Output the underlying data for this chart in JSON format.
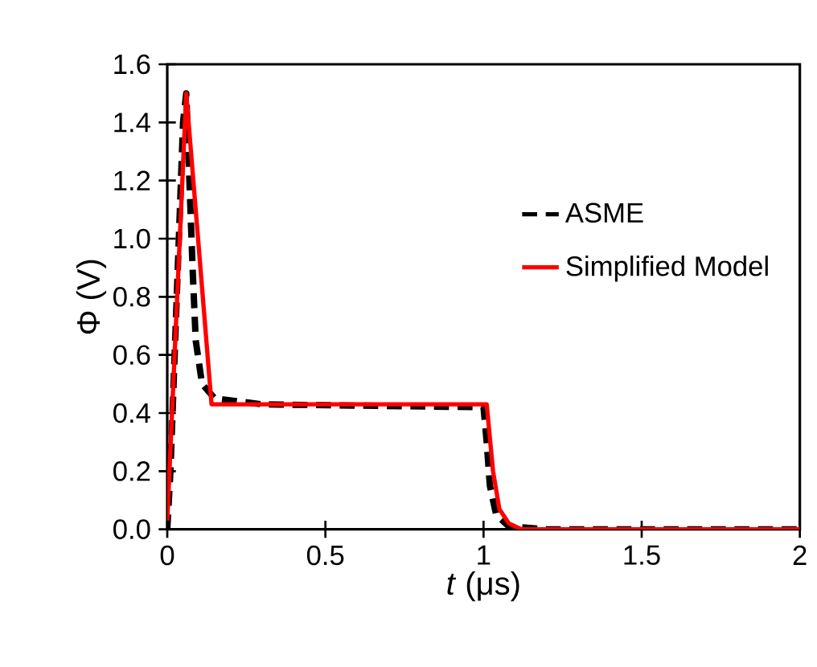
{
  "chart_data": {
    "type": "line",
    "xlabel": "*t* (μs)",
    "ylabel": "Φ (V)",
    "xlim": [
      0,
      2
    ],
    "ylim": [
      0,
      1.6
    ],
    "xticks": [
      0,
      0.5,
      1,
      1.5,
      2
    ],
    "yticks": [
      {
        "value": 0,
        "label": "0.0"
      },
      {
        "value": 0.2,
        "label": "0.2"
      },
      {
        "value": 0.4,
        "label": "0.4"
      },
      {
        "value": 0.6,
        "label": "0.6"
      },
      {
        "value": 0.8,
        "label": "0.8"
      },
      {
        "value": 1.0,
        "label": "1.0"
      },
      {
        "value": 1.2,
        "label": "1.2"
      },
      {
        "value": 1.4,
        "label": "1.4"
      },
      {
        "value": 1.6,
        "label": "1.6"
      }
    ],
    "grid": false,
    "legend": "right",
    "series": [
      {
        "name": "ASME",
        "color": "#000000",
        "line_style": "dashed",
        "x": [
          0,
          0.01,
          0.03,
          0.05,
          0.06,
          0.07,
          0.08,
          0.09,
          0.11,
          0.15,
          0.3,
          1.0,
          1.01,
          1.02,
          1.04,
          1.08,
          1.2,
          2
        ],
        "values": [
          0,
          0.2,
          0.8,
          1.4,
          1.5,
          1.2,
          0.9,
          0.65,
          0.5,
          0.45,
          0.43,
          0.42,
          0.3,
          0.15,
          0.05,
          0.01,
          0,
          0
        ]
      },
      {
        "name": "Simplified Model",
        "color": "#ff0000",
        "line_style": "solid",
        "x": [
          0,
          0.06,
          0.14,
          1.01,
          1.03,
          1.05,
          1.08,
          1.12,
          2
        ],
        "values": [
          0.03,
          1.5,
          0.43,
          0.43,
          0.2,
          0.07,
          0.02,
          0,
          0
        ]
      }
    ]
  }
}
